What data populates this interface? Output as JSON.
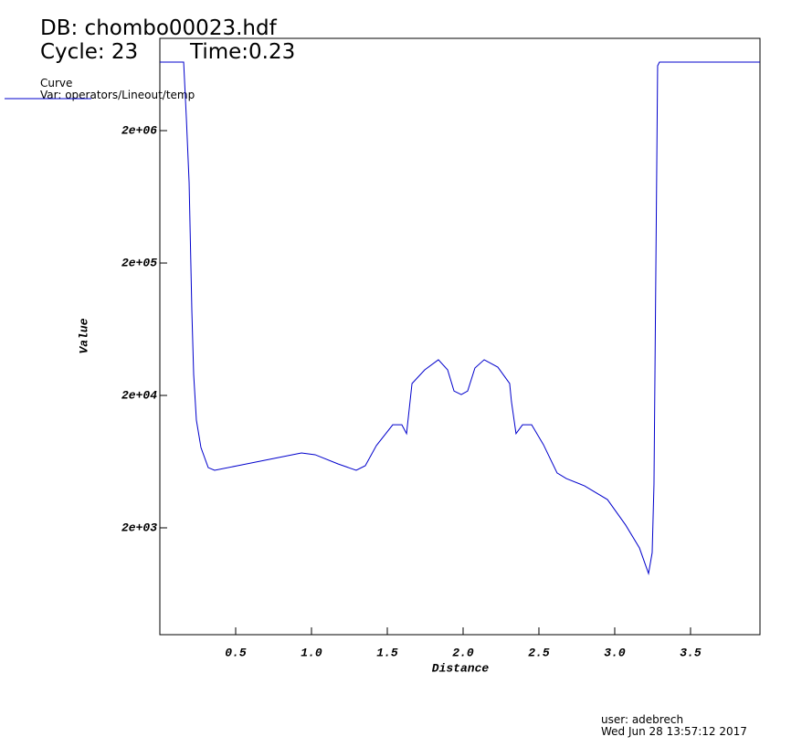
{
  "chart_data": {
    "type": "line",
    "title": "DB: chombo00023.hdf",
    "cycle": "Cycle: 23",
    "time": "Time:0.23",
    "legend_title": "Curve",
    "xlabel": "Distance",
    "ylabel": "Value",
    "user": "user: adebrech",
    "date": "Wed Jun 28 13:57:12 2017",
    "log_y": true,
    "xlim": [
      0,
      3.958
    ],
    "ylim": [
      312,
      9950000
    ],
    "xticks": [
      0.5,
      {
        "value": 1,
        "label": "1.0"
      },
      1.5,
      {
        "value": 2,
        "label": "2.0"
      },
      2.5,
      {
        "value": 3,
        "label": "3.0"
      },
      3.5
    ],
    "yticks": [
      {
        "value": 2000,
        "label": "2e+03"
      },
      {
        "value": 20000,
        "label": "2e+04"
      },
      {
        "value": 200000,
        "label": "2e+05"
      },
      {
        "value": 2000000,
        "label": "2e+06"
      }
    ],
    "x": [
      0,
      0.157,
      0.175,
      0.193,
      0.211,
      0.223,
      0.241,
      0.271,
      0.319,
      0.361,
      0.512,
      0.753,
      0.934,
      1.024,
      1.175,
      1.295,
      1.355,
      1.428,
      1.536,
      1.596,
      1.627,
      1.663,
      1.747,
      1.837,
      1.898,
      1.94,
      1.988,
      2.03,
      2.078,
      2.139,
      2.229,
      2.307,
      2.319,
      2.349,
      2.392,
      2.452,
      2.53,
      2.62,
      2.681,
      2.801,
      2.952,
      3.072,
      3.163,
      3.223,
      3.247,
      3.259,
      3.271,
      3.283,
      3.295,
      3.958
    ],
    "series": [
      {
        "name": "Var: operators/Lineout/temp",
        "color": "#0000cc",
        "values": [
          6580000,
          6580000,
          2460000,
          810000,
          87500,
          28800,
          13000,
          8090,
          5700,
          5440,
          5890,
          6690,
          7360,
          7130,
          6080,
          5440,
          5890,
          8360,
          12000,
          12000,
          10300,
          24600,
          31200,
          37200,
          31200,
          21600,
          20300,
          21600,
          32200,
          37200,
          32700,
          24600,
          17900,
          10300,
          12000,
          12000,
          8490,
          5190,
          4710,
          4150,
          3270,
          2100,
          1410,
          904,
          1300,
          4290,
          165000,
          6180000,
          6580000,
          6580000
        ]
      }
    ]
  }
}
